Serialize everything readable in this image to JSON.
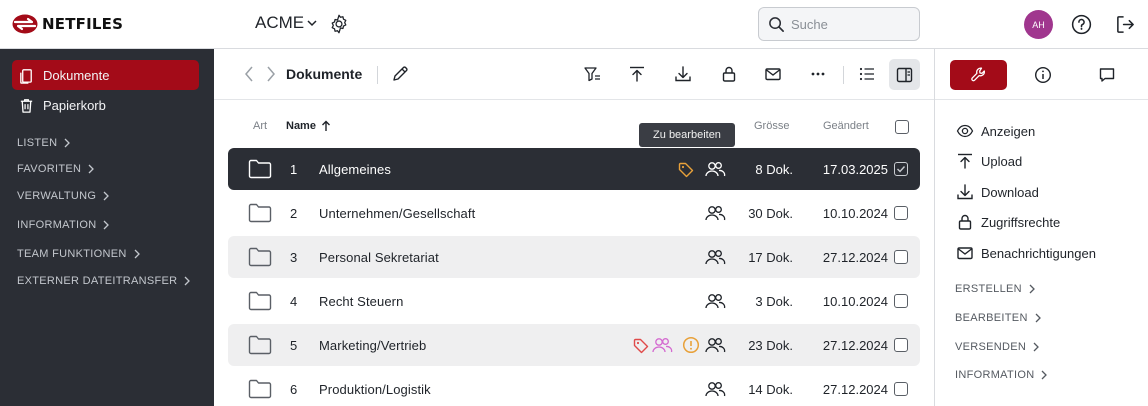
{
  "header": {
    "logo_text": "NETFILES",
    "account_name": "ACME",
    "search": {
      "placeholder": "Suche",
      "value": ""
    },
    "avatar_initials": "AH",
    "brand_color": "#a30b18"
  },
  "sidebar": {
    "items": [
      {
        "label": "Dokumente",
        "icon": "documents-icon",
        "active": true
      },
      {
        "label": "Papierkorb",
        "icon": "trash-icon",
        "active": false
      }
    ],
    "sections": [
      "LISTEN",
      "FAVORITEN",
      "VERWALTUNG",
      "INFORMATION",
      "TEAM FUNKTIONEN",
      "EXTERNER DATEITRANSFER"
    ]
  },
  "toolbar": {
    "breadcrumb": "Dokumente",
    "tooltip": "Zu bearbeiten"
  },
  "table": {
    "columns": {
      "type": "Art",
      "name": "Name",
      "size": "Grösse",
      "modified": "Geändert"
    },
    "rows": [
      {
        "num": "1",
        "name": "Allgemeines",
        "size": "8 Dok.",
        "date": "17.03.2025",
        "selected": true,
        "tag": true,
        "tag_color": "#e8a13a",
        "users_colored": false,
        "warning": false,
        "checked": true
      },
      {
        "num": "2",
        "name": "Unternehmen/Gesellschaft",
        "size": "30 Dok.",
        "date": "10.10.2024",
        "selected": false,
        "tag": false,
        "users_colored": false,
        "warning": false,
        "checked": false
      },
      {
        "num": "3",
        "name": "Personal Sekretariat",
        "size": "17 Dok.",
        "date": "27.12.2024",
        "selected": false,
        "tag": false,
        "users_colored": false,
        "warning": false,
        "checked": false
      },
      {
        "num": "4",
        "name": "Recht Steuern",
        "size": "3 Dok.",
        "date": "10.10.2024",
        "selected": false,
        "tag": false,
        "users_colored": false,
        "warning": false,
        "checked": false
      },
      {
        "num": "5",
        "name": "Marketing/Vertrieb",
        "size": "23 Dok.",
        "date": "27.12.2024",
        "selected": false,
        "tag": true,
        "tag_color": "#e04a4a",
        "users_colored": true,
        "users_color": "#d46ad0",
        "warning": true,
        "warning_color": "#e8a13a",
        "checked": false
      },
      {
        "num": "6",
        "name": "Produktion/Logistik",
        "size": "14 Dok.",
        "date": "27.12.2024",
        "selected": false,
        "tag": false,
        "users_colored": false,
        "warning": false,
        "checked": false
      }
    ]
  },
  "right_panel": {
    "tabs": [
      "wrench-icon",
      "info-icon",
      "comment-icon"
    ],
    "actions": [
      {
        "label": "Anzeigen",
        "icon": "eye-icon"
      },
      {
        "label": "Upload",
        "icon": "upload-icon"
      },
      {
        "label": "Download",
        "icon": "download-icon"
      },
      {
        "label": "Zugriffsrechte",
        "icon": "lock-icon"
      },
      {
        "label": "Benachrichtigungen",
        "icon": "mail-icon"
      }
    ],
    "sections": [
      "ERSTELLEN",
      "BEARBEITEN",
      "VERSENDEN",
      "INFORMATION"
    ]
  }
}
